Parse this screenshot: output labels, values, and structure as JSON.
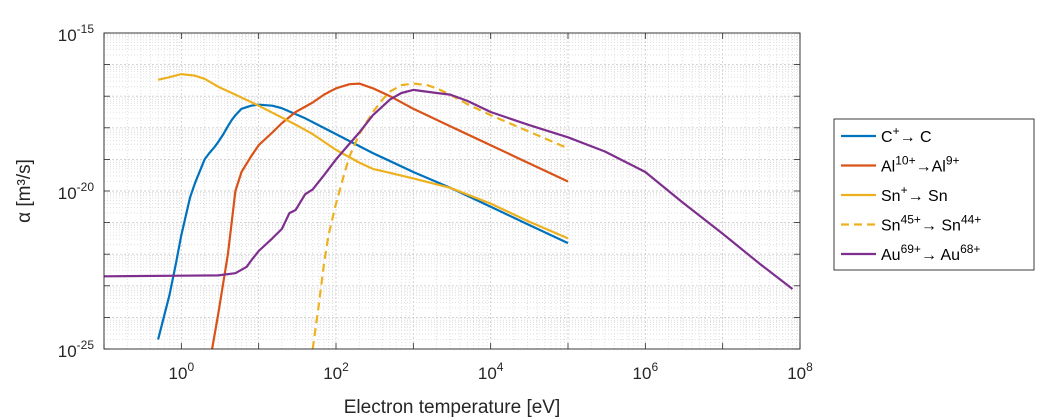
{
  "chart_data": {
    "type": "line",
    "title": "",
    "xlabel": "Electron temperature [eV]",
    "ylabel": "α [m³/s]",
    "xscale": "log",
    "yscale": "log",
    "xlim_exp": [
      -1,
      8
    ],
    "ylim_exp": [
      -25,
      -15
    ],
    "x_ticks": [
      {
        "base": "10",
        "exp": "0",
        "value": 1
      },
      {
        "base": "10",
        "exp": "2",
        "value": 100
      },
      {
        "base": "10",
        "exp": "4",
        "value": 10000
      },
      {
        "base": "10",
        "exp": "6",
        "value": 1000000
      },
      {
        "base": "10",
        "exp": "8",
        "value": 100000000
      }
    ],
    "y_ticks": [
      {
        "base": "10",
        "exp": "-15",
        "value": 1e-15
      },
      {
        "base": "10",
        "exp": "-20",
        "value": 1e-20
      },
      {
        "base": "10",
        "exp": "-25",
        "value": 1e-25
      }
    ],
    "grid": true,
    "minor_grid": true,
    "legend_position": "outside-right",
    "series": [
      {
        "label_parts": [
          {
            "t": "C"
          },
          {
            "t": "+",
            "sup": true
          },
          {
            "t": "→ C"
          }
        ],
        "color": "#0072BD",
        "dash": "solid",
        "points": [
          [
            0.5,
            -24.7
          ],
          [
            0.7,
            -23.3
          ],
          [
            0.85,
            -22.3
          ],
          [
            1.0,
            -21.4
          ],
          [
            1.3,
            -20.2
          ],
          [
            1.5,
            -19.75
          ],
          [
            2,
            -19.0
          ],
          [
            2.3,
            -18.8
          ],
          [
            2.7,
            -18.6
          ],
          [
            3,
            -18.45
          ],
          [
            3.5,
            -18.2
          ],
          [
            4,
            -17.95
          ],
          [
            4.5,
            -17.75
          ],
          [
            5,
            -17.6
          ],
          [
            6,
            -17.4
          ],
          [
            8,
            -17.3
          ],
          [
            10,
            -17.27
          ],
          [
            15,
            -17.3
          ],
          [
            20,
            -17.38
          ],
          [
            40,
            -17.7
          ],
          [
            100,
            -18.2
          ],
          [
            300,
            -18.8
          ],
          [
            1000,
            -19.4
          ],
          [
            3000,
            -19.9
          ],
          [
            10000,
            -20.5
          ],
          [
            30000,
            -21.05
          ],
          [
            100000,
            -21.65
          ]
        ]
      },
      {
        "label_parts": [
          {
            "t": "Al"
          },
          {
            "t": "10+",
            "sup": true
          },
          {
            "t": "→Al"
          },
          {
            "t": "9+",
            "sup": true
          }
        ],
        "color": "#D95319",
        "dash": "solid",
        "points": [
          [
            2.5,
            -25.0
          ],
          [
            3,
            -23.9
          ],
          [
            4,
            -22.0
          ],
          [
            5,
            -20.0
          ],
          [
            6,
            -19.4
          ],
          [
            8,
            -18.9
          ],
          [
            10,
            -18.55
          ],
          [
            15,
            -18.15
          ],
          [
            20,
            -17.85
          ],
          [
            30,
            -17.5
          ],
          [
            50,
            -17.2
          ],
          [
            70,
            -16.95
          ],
          [
            100,
            -16.75
          ],
          [
            150,
            -16.62
          ],
          [
            200,
            -16.6
          ],
          [
            300,
            -16.75
          ],
          [
            500,
            -17.0
          ],
          [
            1000,
            -17.4
          ],
          [
            3000,
            -17.95
          ],
          [
            10000,
            -18.55
          ],
          [
            30000,
            -19.1
          ],
          [
            100000,
            -19.7
          ]
        ]
      },
      {
        "label_parts": [
          {
            "t": "Sn"
          },
          {
            "t": "+",
            "sup": true
          },
          {
            "t": "→ Sn"
          }
        ],
        "color": "#EDB120",
        "dash": "solid",
        "points": [
          [
            0.5,
            -16.48
          ],
          [
            0.7,
            -16.4
          ],
          [
            1.0,
            -16.3
          ],
          [
            1.5,
            -16.35
          ],
          [
            2,
            -16.45
          ],
          [
            3,
            -16.7
          ],
          [
            5,
            -16.95
          ],
          [
            10,
            -17.3
          ],
          [
            30,
            -17.9
          ],
          [
            50,
            -18.2
          ],
          [
            100,
            -18.7
          ],
          [
            200,
            -19.1
          ],
          [
            300,
            -19.3
          ],
          [
            1000,
            -19.6
          ],
          [
            3000,
            -19.9
          ],
          [
            10000,
            -20.4
          ],
          [
            30000,
            -20.95
          ],
          [
            100000,
            -21.5
          ]
        ]
      },
      {
        "label_parts": [
          {
            "t": "Sn"
          },
          {
            "t": "45+",
            "sup": true
          },
          {
            "t": "→ Sn"
          },
          {
            "t": "44+",
            "sup": true
          }
        ],
        "color": "#EDB120",
        "dash": "dashed",
        "points": [
          [
            50,
            -25.0
          ],
          [
            60,
            -23.6
          ],
          [
            70,
            -22.3
          ],
          [
            80,
            -21.4
          ],
          [
            100,
            -20.4
          ],
          [
            130,
            -19.4
          ],
          [
            150,
            -18.9
          ],
          [
            200,
            -18.2
          ],
          [
            300,
            -17.5
          ],
          [
            400,
            -17.1
          ],
          [
            500,
            -16.85
          ],
          [
            700,
            -16.65
          ],
          [
            1000,
            -16.6
          ],
          [
            1500,
            -16.65
          ],
          [
            2000,
            -16.75
          ],
          [
            3000,
            -16.95
          ],
          [
            5000,
            -17.25
          ],
          [
            10000,
            -17.6
          ],
          [
            30000,
            -18.1
          ],
          [
            100000,
            -18.65
          ]
        ]
      },
      {
        "label_parts": [
          {
            "t": "Au"
          },
          {
            "t": "69+",
            "sup": true
          },
          {
            "t": "→ Au"
          },
          {
            "t": "68+",
            "sup": true
          }
        ],
        "color": "#7E2F8E",
        "dash": "solid",
        "points": [
          [
            0.1,
            -22.7
          ],
          [
            1,
            -22.68
          ],
          [
            3,
            -22.67
          ],
          [
            5,
            -22.6
          ],
          [
            7,
            -22.4
          ],
          [
            8,
            -22.2
          ],
          [
            10,
            -21.9
          ],
          [
            15,
            -21.5
          ],
          [
            20,
            -21.2
          ],
          [
            25,
            -20.7
          ],
          [
            30,
            -20.6
          ],
          [
            40,
            -20.1
          ],
          [
            50,
            -19.95
          ],
          [
            70,
            -19.5
          ],
          [
            100,
            -19.0
          ],
          [
            150,
            -18.5
          ],
          [
            200,
            -18.15
          ],
          [
            300,
            -17.6
          ],
          [
            500,
            -17.1
          ],
          [
            700,
            -16.9
          ],
          [
            1000,
            -16.8
          ],
          [
            2000,
            -16.9
          ],
          [
            3000,
            -16.95
          ],
          [
            5000,
            -17.15
          ],
          [
            10000,
            -17.5
          ],
          [
            30000,
            -17.9
          ],
          [
            100000,
            -18.3
          ],
          [
            300000,
            -18.75
          ],
          [
            1000000,
            -19.4
          ],
          [
            3000000,
            -20.35
          ],
          [
            10000000,
            -21.35
          ],
          [
            30000000,
            -22.3
          ],
          [
            80000000,
            -23.1
          ]
        ]
      }
    ]
  }
}
